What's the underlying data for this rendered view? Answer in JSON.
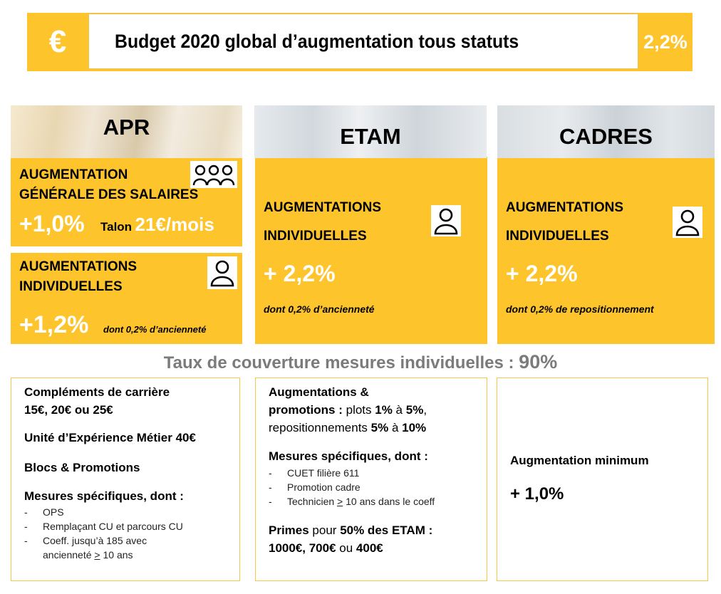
{
  "banner": {
    "symbol": "€",
    "title": "Budget 2020 global d’augmentation tous statuts",
    "value": "2,2%"
  },
  "columns": {
    "apr": "APR",
    "etam": "ETAM",
    "cadres": "CADRES"
  },
  "apr": {
    "general": {
      "title_line1": "AUGMENTATION",
      "title_line2": "GÉNÉRALE DES SALAIRES",
      "value": "+1,0%",
      "talon_label": "Talon",
      "talon_value": "21€/mois",
      "icon": "group-people-icon"
    },
    "individual": {
      "title_line1": "AUGMENTATIONS",
      "title_line2": "INDIVIDUELLES",
      "value": "+1,2%",
      "note": "dont 0,2% d’ancienneté",
      "icon": "person-icon"
    }
  },
  "etam": {
    "title_line1": "AUGMENTATIONS",
    "title_line2": "INDIVIDUELLES",
    "value": "+ 2,2%",
    "note": "dont 0,2% d’ancienneté",
    "icon": "person-icon"
  },
  "cadres": {
    "title_line1": "AUGMENTATIONS",
    "title_line2": "INDIVIDUELLES",
    "value": "+ 2,2%",
    "note": "dont 0,2% de repositionnement",
    "icon": "person-icon"
  },
  "coverage": {
    "label": "Taux de couverture mesures individuelles : ",
    "value": "90%"
  },
  "box_apr": {
    "l1": "Compléments de carrière",
    "l2": "15€, 20€ ou 25€",
    "l3": "Unité d’Expérience Métier 40€",
    "l4": "Blocs & Promotions",
    "l5": "Mesures spécifiques, dont :",
    "items": {
      "i1": "OPS",
      "i2": "Remplaçant CU et parcours CU",
      "i3a": "Coeff. jusqu’à 185 avec",
      "i3b_pre": "ancienneté ",
      "i3b_ge": ">",
      "i3b_post": " 10 ans"
    },
    "dash": "-"
  },
  "box_etam": {
    "l1": "Augmentations &",
    "l2_bold": "promotions :",
    "l2_plain": " plots ",
    "l2_v1": "1%",
    "l2_mid": " à ",
    "l2_v2": "5%",
    "l2_end": ",",
    "l3_plain": "repositionnements ",
    "l3_v1": "5%",
    "l3_mid": " à ",
    "l3_v2": "10%",
    "l4": "Mesures spécifiques, dont :",
    "items": {
      "i1": "CUET filière 611",
      "i2": "Promotion cadre",
      "i3_pre": "Technicien ",
      "i3_ge": ">",
      "i3_post": " 10 ans dans le coeff"
    },
    "l5_bold": "Primes",
    "l5_plain": " pour ",
    "l5_v": "50% des ETAM :",
    "l6_v1": "1000€, 700€",
    "l6_mid": " ou ",
    "l6_v2": "400€",
    "dash": "-"
  },
  "box_cadres": {
    "l1": "Augmentation minimum",
    "l2": "+ 1,0%"
  },
  "colors": {
    "accent": "#fdc42c",
    "coverage_text": "#7b7b7b",
    "box_border": "#f5c84a"
  }
}
